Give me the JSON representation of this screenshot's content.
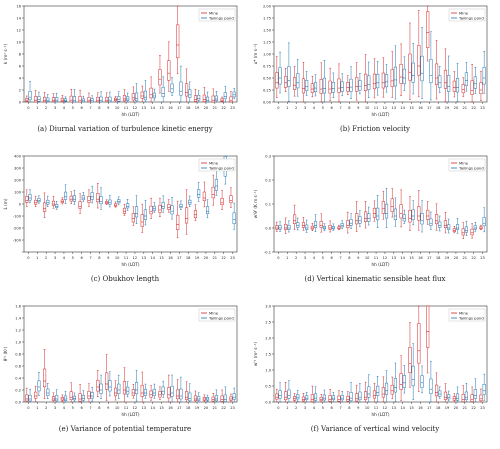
{
  "colors": {
    "mine": "#d62728",
    "pond": "#1f77b4"
  },
  "legend": {
    "mine": "Mine",
    "pond": "Tailings pond"
  },
  "hours": [
    "0",
    "1",
    "2",
    "3",
    "4",
    "5",
    "6",
    "7",
    "8",
    "9",
    "10",
    "11",
    "12",
    "13",
    "14",
    "15",
    "16",
    "17",
    "18",
    "19",
    "20",
    "21",
    "22",
    "23"
  ],
  "chart_data": [
    {
      "id": "a",
      "type": "box",
      "caption": "(a) Diurnal variation of turbulence kinetic energy",
      "xlabel": "hh (LDT)",
      "ylabel": "k (m² s⁻²)",
      "ylim": [
        0,
        16
      ],
      "yticks": [
        0,
        2,
        4,
        6,
        8,
        10,
        12,
        14,
        16
      ],
      "ytick_labels": [
        "0",
        "2",
        "4",
        "6",
        "8",
        "10",
        "12",
        "14",
        "16"
      ],
      "series": [
        {
          "name": "Mine",
          "median": [
            0.3,
            0.3,
            0.3,
            0.3,
            0.3,
            0.3,
            0.3,
            0.3,
            0.3,
            0.3,
            0.4,
            0.5,
            0.7,
            1.0,
            1.2,
            3.8,
            4.8,
            9.5,
            1.6,
            0.4,
            0.4,
            0.3,
            0.3,
            0.3
          ]
        },
        {
          "name": "Tailings pond",
          "median": [
            0.8,
            0.4,
            0.3,
            0.3,
            0.3,
            0.2,
            0.2,
            0.2,
            0.3,
            0.3,
            0.4,
            0.5,
            0.6,
            0.8,
            1.0,
            1.4,
            2.2,
            1.8,
            1.2,
            0.6,
            0.3,
            0.5,
            0.9,
            1.2
          ]
        }
      ]
    },
    {
      "id": "b",
      "type": "box",
      "caption": "(b) Friction velocity",
      "xlabel": "hh (LDT)",
      "ylabel": "u* (m s⁻¹)",
      "ylim": [
        0,
        2.0
      ],
      "yticks": [
        0,
        0.25,
        0.5,
        0.75,
        1.0,
        1.25,
        1.5,
        1.75,
        2.0
      ],
      "ytick_labels": [
        "0.00",
        "0.25",
        "0.50",
        "0.75",
        "1.00",
        "1.25",
        "1.50",
        "1.75",
        "2.00"
      ],
      "series": [
        {
          "name": "Mine",
          "median": [
            0.4,
            0.4,
            0.35,
            0.28,
            0.27,
            0.27,
            0.27,
            0.29,
            0.3,
            0.32,
            0.34,
            0.38,
            0.4,
            0.44,
            0.52,
            0.62,
            0.75,
            1.45,
            0.5,
            0.4,
            0.3,
            0.26,
            0.24,
            0.25
          ]
        },
        {
          "name": "Tailings pond",
          "median": [
            0.5,
            0.45,
            0.4,
            0.32,
            0.29,
            0.28,
            0.28,
            0.3,
            0.31,
            0.33,
            0.36,
            0.4,
            0.42,
            0.46,
            0.5,
            0.55,
            0.6,
            0.55,
            0.4,
            0.32,
            0.3,
            0.45,
            0.38,
            0.5
          ]
        }
      ]
    },
    {
      "id": "c",
      "type": "box",
      "caption": "(c) Obukhov length",
      "xlabel": "hh (LDT)",
      "ylabel": "L (m)",
      "ylim": [
        -400,
        400
      ],
      "yticks": [
        -400,
        -300,
        -200,
        -100,
        0,
        100,
        200,
        300,
        400
      ],
      "ytick_labels": [
        "",
        "-300",
        "-200",
        "-100",
        "0",
        "100",
        "200",
        "300",
        "400"
      ],
      "series": [
        {
          "name": "Mine",
          "median": [
            30,
            10,
            -40,
            0,
            20,
            40,
            -20,
            30,
            40,
            10,
            -10,
            -60,
            -120,
            -150,
            -60,
            -50,
            -30,
            -170,
            -120,
            -90,
            50,
            80,
            10,
            30
          ]
        },
        {
          "name": "Tailings pond",
          "median": [
            50,
            30,
            10,
            -20,
            60,
            40,
            50,
            60,
            20,
            10,
            20,
            -20,
            -80,
            -100,
            -40,
            -20,
            -60,
            -20,
            10,
            80,
            -60,
            150,
            300,
            -130
          ]
        }
      ]
    },
    {
      "id": "d",
      "type": "box",
      "caption": "(d) Vertical kinematic sensible heat flux",
      "xlabel": "hh (LDT)",
      "ylabel": "w'θ' (K m s⁻¹)",
      "ylim": [
        -0.1,
        0.3
      ],
      "yticks": [
        -0.1,
        0,
        0.1,
        0.2,
        0.3
      ],
      "ytick_labels": [
        "-0.1",
        "0.0",
        "0.1",
        "0.2",
        "0.3"
      ],
      "series": [
        {
          "name": "Mine",
          "median": [
            0.0,
            0.0,
            0.03,
            0.01,
            0.0,
            0.01,
            0.0,
            0.0,
            0.01,
            0.03,
            0.04,
            0.06,
            0.08,
            0.09,
            0.06,
            0.04,
            0.05,
            0.05,
            0.03,
            0.01,
            -0.01,
            -0.02,
            -0.02,
            0.0
          ]
        },
        {
          "name": "Tailings pond",
          "median": [
            0.0,
            0.0,
            0.01,
            0.0,
            0.01,
            0.0,
            0.0,
            0.01,
            0.02,
            0.03,
            0.04,
            0.05,
            0.06,
            0.05,
            0.04,
            0.05,
            0.03,
            0.02,
            0.01,
            0.0,
            0.0,
            -0.01,
            0.0,
            0.02
          ]
        }
      ]
    },
    {
      "id": "e",
      "type": "box",
      "caption": "(e) Variance of potential temperature",
      "xlabel": "hh (LDT)",
      "ylabel": "θ'² (K²)",
      "ylim": [
        0,
        1.6
      ],
      "yticks": [
        0,
        0.2,
        0.4,
        0.6,
        0.8,
        1.0,
        1.2,
        1.4,
        1.6
      ],
      "ytick_labels": [
        "0.0",
        "0.2",
        "0.4",
        "0.6",
        "0.8",
        "1.0",
        "1.2",
        "1.4",
        "1.6"
      ],
      "series": [
        {
          "name": "Mine",
          "median": [
            0.05,
            0.1,
            0.35,
            0.05,
            0.05,
            0.08,
            0.05,
            0.1,
            0.25,
            0.3,
            0.15,
            0.2,
            0.15,
            0.15,
            0.12,
            0.12,
            0.12,
            0.1,
            0.08,
            0.05,
            0.05,
            0.04,
            0.04,
            0.05
          ]
        },
        {
          "name": "Tailings pond",
          "median": [
            0.05,
            0.25,
            0.15,
            0.05,
            0.05,
            0.06,
            0.06,
            0.1,
            0.2,
            0.25,
            0.2,
            0.18,
            0.2,
            0.15,
            0.15,
            0.18,
            0.15,
            0.1,
            0.06,
            0.05,
            0.05,
            0.05,
            0.04,
            0.08
          ]
        }
      ]
    },
    {
      "id": "f",
      "type": "box",
      "caption": "(f) Variance of vertical wind velocity",
      "xlabel": "hh (LDT)",
      "ylabel": "w'² (m² s⁻²)",
      "ylim": [
        0,
        3.0
      ],
      "yticks": [
        0,
        0.5,
        1.0,
        1.5,
        2.0,
        2.5,
        3.0
      ],
      "ytick_labels": [
        "0.0",
        "0.5",
        "1.0",
        "1.5",
        "2.0",
        "2.5",
        "3.0"
      ],
      "series": [
        {
          "name": "Mine",
          "median": [
            0.15,
            0.15,
            0.1,
            0.08,
            0.08,
            0.08,
            0.08,
            0.08,
            0.08,
            0.1,
            0.15,
            0.2,
            0.25,
            0.35,
            0.55,
            1.2,
            1.6,
            2.2,
            0.3,
            0.15,
            0.1,
            0.08,
            0.08,
            0.1
          ]
        },
        {
          "name": "Tailings pond",
          "median": [
            0.2,
            0.2,
            0.15,
            0.12,
            0.12,
            0.12,
            0.12,
            0.12,
            0.12,
            0.15,
            0.25,
            0.3,
            0.35,
            0.45,
            0.6,
            0.7,
            0.6,
            0.4,
            0.25,
            0.15,
            0.12,
            0.15,
            0.2,
            0.35
          ]
        }
      ]
    }
  ]
}
